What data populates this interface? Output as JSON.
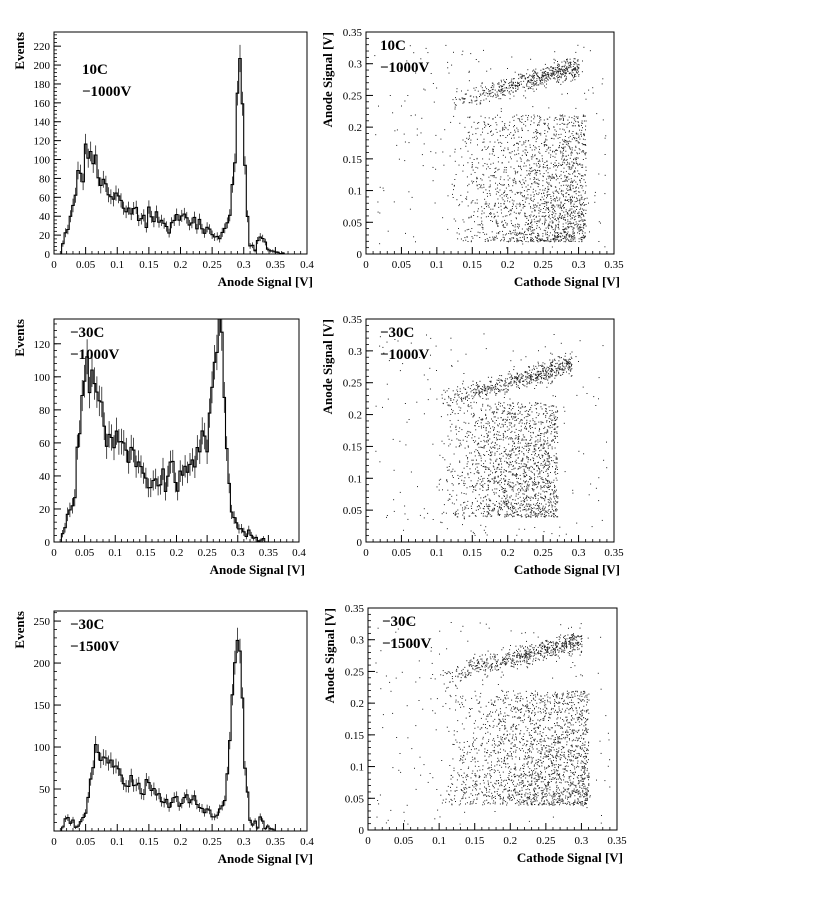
{
  "chart_data": [
    {
      "type": "histogram",
      "panel": "hist-10C-1000V",
      "annotation": [
        "10C",
        "−1000V"
      ],
      "xlabel": "Anode Signal [V]",
      "ylabel": "Events",
      "xlim": [
        0,
        0.4
      ],
      "ylim": [
        0,
        235
      ],
      "xticks": [
        0,
        0.05,
        0.1,
        0.15,
        0.2,
        0.25,
        0.3,
        0.35,
        0.4
      ],
      "xtick_labels": [
        "0",
        "0.05",
        "0.1",
        "0.15",
        "0.2",
        "0.25",
        "0.3",
        "0.35",
        "0.4"
      ],
      "yticks": [
        0,
        20,
        40,
        60,
        80,
        100,
        120,
        140,
        160,
        180,
        200,
        220
      ],
      "ytick_labels": [
        "0",
        "20",
        "40",
        "60",
        "80",
        "100",
        "120",
        "140",
        "160",
        "180",
        "200",
        "220"
      ],
      "profile": [
        [
          0.012,
          0
        ],
        [
          0.018,
          25
        ],
        [
          0.025,
          35
        ],
        [
          0.03,
          50
        ],
        [
          0.035,
          70
        ],
        [
          0.04,
          85
        ],
        [
          0.045,
          95
        ],
        [
          0.05,
          100
        ],
        [
          0.055,
          103
        ],
        [
          0.06,
          95
        ],
        [
          0.065,
          88
        ],
        [
          0.07,
          86
        ],
        [
          0.075,
          80
        ],
        [
          0.08,
          78
        ],
        [
          0.085,
          70
        ],
        [
          0.09,
          65
        ],
        [
          0.1,
          58
        ],
        [
          0.11,
          52
        ],
        [
          0.12,
          48
        ],
        [
          0.13,
          42
        ],
        [
          0.14,
          38
        ],
        [
          0.15,
          35
        ],
        [
          0.16,
          38
        ],
        [
          0.17,
          32
        ],
        [
          0.18,
          30
        ],
        [
          0.19,
          32
        ],
        [
          0.2,
          36
        ],
        [
          0.21,
          38
        ],
        [
          0.22,
          32
        ],
        [
          0.23,
          30
        ],
        [
          0.24,
          25
        ],
        [
          0.25,
          22
        ],
        [
          0.26,
          20
        ],
        [
          0.27,
          24
        ],
        [
          0.275,
          30
        ],
        [
          0.28,
          50
        ],
        [
          0.285,
          100
        ],
        [
          0.29,
          190
        ],
        [
          0.293,
          228
        ],
        [
          0.296,
          200
        ],
        [
          0.3,
          120
        ],
        [
          0.305,
          50
        ],
        [
          0.31,
          12
        ],
        [
          0.315,
          6
        ],
        [
          0.32,
          10
        ],
        [
          0.325,
          15
        ],
        [
          0.33,
          18
        ],
        [
          0.335,
          12
        ],
        [
          0.34,
          5
        ],
        [
          0.35,
          2
        ],
        [
          0.36,
          1
        ],
        [
          0.37,
          0
        ]
      ]
    },
    {
      "type": "scatter",
      "panel": "scatter-10C-1000V",
      "annotation": [
        "10C",
        "−1000V"
      ],
      "xlabel": "Cathode Signal [V]",
      "ylabel": "Anode Signal [V]",
      "xlim": [
        0,
        0.35
      ],
      "ylim": [
        0,
        0.35
      ],
      "xticks": [
        0,
        0.05,
        0.1,
        0.15,
        0.2,
        0.25,
        0.3,
        0.35
      ],
      "xtick_labels": [
        "0",
        "0.05",
        "0.1",
        "0.15",
        "0.2",
        "0.25",
        "0.3",
        "0.35"
      ],
      "yticks": [
        0,
        0.05,
        0.1,
        0.15,
        0.2,
        0.25,
        0.3,
        0.35
      ],
      "ytick_labels": [
        "0",
        "0.05",
        "0.1",
        "0.15",
        "0.2",
        "0.25",
        "0.3",
        "0.35"
      ],
      "n_points": 2600,
      "band": {
        "x_range": [
          0.12,
          0.3
        ],
        "y_range": [
          0.24,
          0.295
        ],
        "peak_x": [
          0.24,
          0.29
        ]
      },
      "cluster": {
        "x_range": [
          0.12,
          0.31
        ],
        "y_range": [
          0.02,
          0.22
        ],
        "peak_x": [
          0.22,
          0.28
        ]
      }
    },
    {
      "type": "histogram",
      "panel": "hist-minus30C-1000V",
      "annotation": [
        "−30C",
        "−1000V"
      ],
      "xlabel": "Anode Signal [V]",
      "ylabel": "Events",
      "xlim": [
        0,
        0.4
      ],
      "ylim": [
        0,
        135
      ],
      "xticks": [
        0,
        0.05,
        0.1,
        0.15,
        0.2,
        0.25,
        0.3,
        0.35,
        0.4
      ],
      "xtick_labels": [
        "0",
        "0.05",
        "0.1",
        "0.15",
        "0.2",
        "0.25",
        "0.3",
        "0.35",
        "0.4"
      ],
      "yticks": [
        0,
        20,
        40,
        60,
        80,
        100,
        120
      ],
      "ytick_labels": [
        "0",
        "20",
        "40",
        "60",
        "80",
        "100",
        "120"
      ],
      "profile": [
        [
          0.012,
          0
        ],
        [
          0.015,
          5
        ],
        [
          0.02,
          12
        ],
        [
          0.025,
          15
        ],
        [
          0.03,
          20
        ],
        [
          0.035,
          35
        ],
        [
          0.04,
          60
        ],
        [
          0.045,
          85
        ],
        [
          0.05,
          100
        ],
        [
          0.055,
          108
        ],
        [
          0.06,
          112
        ],
        [
          0.065,
          105
        ],
        [
          0.07,
          100
        ],
        [
          0.075,
          90
        ],
        [
          0.08,
          80
        ],
        [
          0.085,
          72
        ],
        [
          0.09,
          68
        ],
        [
          0.1,
          62
        ],
        [
          0.11,
          58
        ],
        [
          0.12,
          52
        ],
        [
          0.13,
          45
        ],
        [
          0.14,
          42
        ],
        [
          0.15,
          40
        ],
        [
          0.16,
          40
        ],
        [
          0.17,
          38
        ],
        [
          0.18,
          40
        ],
        [
          0.19,
          42
        ],
        [
          0.2,
          42
        ],
        [
          0.21,
          45
        ],
        [
          0.22,
          50
        ],
        [
          0.23,
          52
        ],
        [
          0.24,
          58
        ],
        [
          0.25,
          70
        ],
        [
          0.255,
          90
        ],
        [
          0.26,
          105
        ],
        [
          0.265,
          115
        ],
        [
          0.27,
          122
        ],
        [
          0.275,
          110
        ],
        [
          0.28,
          80
        ],
        [
          0.285,
          40
        ],
        [
          0.29,
          15
        ],
        [
          0.3,
          10
        ],
        [
          0.31,
          6
        ],
        [
          0.32,
          4
        ],
        [
          0.33,
          2
        ],
        [
          0.34,
          1
        ],
        [
          0.35,
          0
        ]
      ]
    },
    {
      "type": "scatter",
      "panel": "scatter-minus30C-1000V",
      "annotation": [
        "−30C",
        "−1000V"
      ],
      "xlabel": "Cathode Signal [V]",
      "ylabel": "Anode Signal [V]",
      "xlim": [
        0,
        0.35
      ],
      "ylim": [
        0,
        0.35
      ],
      "xticks": [
        0,
        0.05,
        0.1,
        0.15,
        0.2,
        0.25,
        0.3,
        0.35
      ],
      "xtick_labels": [
        "0",
        "0.05",
        "0.1",
        "0.15",
        "0.2",
        "0.25",
        "0.3",
        "0.35"
      ],
      "yticks": [
        0,
        0.05,
        0.1,
        0.15,
        0.2,
        0.25,
        0.3,
        0.35
      ],
      "ytick_labels": [
        "0",
        "0.05",
        "0.1",
        "0.15",
        "0.2",
        "0.25",
        "0.3",
        "0.35"
      ],
      "n_points": 2400,
      "band": {
        "x_range": [
          0.1,
          0.29
        ],
        "y_range": [
          0.22,
          0.28
        ],
        "peak_x": [
          0.23,
          0.28
        ]
      },
      "cluster": {
        "x_range": [
          0.1,
          0.27
        ],
        "y_range": [
          0.04,
          0.22
        ],
        "peak_x": [
          0.2,
          0.26
        ]
      }
    },
    {
      "type": "histogram",
      "panel": "hist-minus30C-1500V",
      "annotation": [
        "−30C",
        "−1500V"
      ],
      "xlabel": "Anode Signal [V]",
      "ylabel": "Events",
      "xlim": [
        0,
        0.4
      ],
      "ylim": [
        0,
        262
      ],
      "xticks": [
        0,
        0.05,
        0.1,
        0.15,
        0.2,
        0.25,
        0.3,
        0.35,
        0.4
      ],
      "xtick_labels": [
        "0",
        "0.05",
        "0.1",
        "0.15",
        "0.2",
        "0.25",
        "0.3",
        "0.35",
        "0.4"
      ],
      "yticks": [
        50,
        100,
        150,
        200,
        250
      ],
      "ytick_labels": [
        "50",
        "100",
        "150",
        "200",
        "250"
      ],
      "profile": [
        [
          0.012,
          0
        ],
        [
          0.018,
          10
        ],
        [
          0.022,
          20
        ],
        [
          0.028,
          15
        ],
        [
          0.032,
          5
        ],
        [
          0.04,
          10
        ],
        [
          0.05,
          20
        ],
        [
          0.055,
          40
        ],
        [
          0.06,
          70
        ],
        [
          0.065,
          95
        ],
        [
          0.07,
          98
        ],
        [
          0.075,
          92
        ],
        [
          0.08,
          88
        ],
        [
          0.085,
          82
        ],
        [
          0.09,
          78
        ],
        [
          0.1,
          70
        ],
        [
          0.11,
          62
        ],
        [
          0.12,
          58
        ],
        [
          0.13,
          52
        ],
        [
          0.14,
          48
        ],
        [
          0.15,
          50
        ],
        [
          0.16,
          45
        ],
        [
          0.17,
          38
        ],
        [
          0.18,
          35
        ],
        [
          0.19,
          32
        ],
        [
          0.2,
          38
        ],
        [
          0.21,
          42
        ],
        [
          0.22,
          35
        ],
        [
          0.23,
          30
        ],
        [
          0.24,
          25
        ],
        [
          0.25,
          22
        ],
        [
          0.26,
          25
        ],
        [
          0.27,
          40
        ],
        [
          0.275,
          70
        ],
        [
          0.28,
          130
        ],
        [
          0.285,
          200
        ],
        [
          0.29,
          240
        ],
        [
          0.295,
          200
        ],
        [
          0.3,
          100
        ],
        [
          0.305,
          40
        ],
        [
          0.31,
          15
        ],
        [
          0.315,
          8
        ],
        [
          0.32,
          10
        ],
        [
          0.325,
          15
        ],
        [
          0.33,
          12
        ],
        [
          0.335,
          5
        ],
        [
          0.34,
          2
        ],
        [
          0.35,
          0
        ]
      ]
    },
    {
      "type": "scatter",
      "panel": "scatter-minus30C-1500V",
      "annotation": [
        "−30C",
        "−1500V"
      ],
      "xlabel": "Cathode Signal [V]",
      "ylabel": "Anode Signal [V]",
      "xlim": [
        0,
        0.35
      ],
      "ylim": [
        0,
        0.35
      ],
      "xticks": [
        0,
        0.05,
        0.1,
        0.15,
        0.2,
        0.25,
        0.3,
        0.35
      ],
      "xtick_labels": [
        "0",
        "0.05",
        "0.1",
        "0.15",
        "0.2",
        "0.25",
        "0.3",
        "0.35"
      ],
      "yticks": [
        0,
        0.05,
        0.1,
        0.15,
        0.2,
        0.25,
        0.3,
        0.35
      ],
      "ytick_labels": [
        "0",
        "0.05",
        "0.1",
        "0.15",
        "0.2",
        "0.25",
        "0.3",
        "0.35"
      ],
      "n_points": 2800,
      "band": {
        "x_range": [
          0.1,
          0.3
        ],
        "y_range": [
          0.24,
          0.3
        ],
        "peak_x": [
          0.24,
          0.3
        ]
      },
      "cluster": {
        "x_range": [
          0.1,
          0.31
        ],
        "y_range": [
          0.04,
          0.22
        ],
        "peak_x": [
          0.2,
          0.28
        ]
      }
    }
  ]
}
